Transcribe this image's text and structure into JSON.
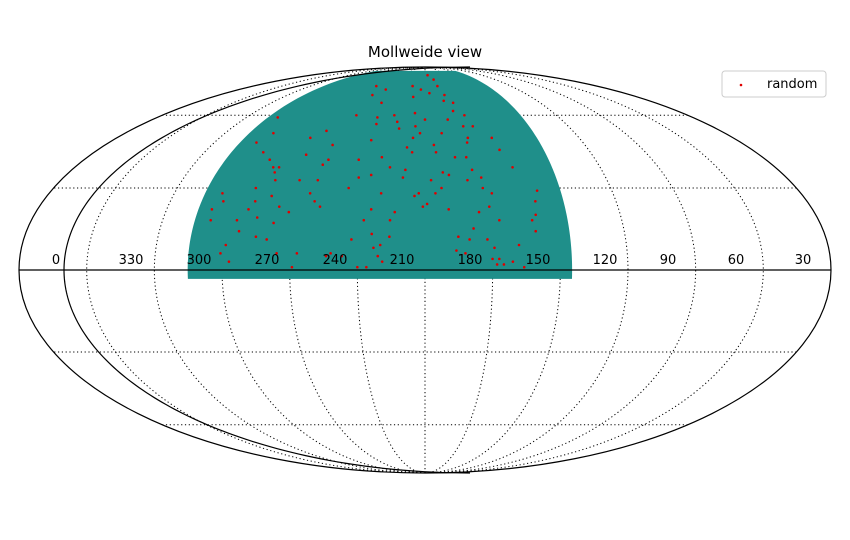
{
  "chart_data": {
    "type": "scatter",
    "title": "Mollweide view",
    "projection": "mollweide",
    "grid": true,
    "legend_position": "top-right",
    "x_ticks": [
      "0",
      "330",
      "300",
      "270",
      "240",
      "210",
      "180",
      "150",
      "120",
      "90",
      "60",
      "30"
    ],
    "footprint": {
      "color": "#1f8f8a",
      "ra_range": [
        115,
        285
      ],
      "dec_range": [
        -3,
        85
      ]
    },
    "series": [
      {
        "name": "random",
        "color": "#e00000",
        "points": [
          [
            279,
            59
          ],
          [
            271,
            52
          ],
          [
            276,
            48
          ],
          [
            268,
            44
          ],
          [
            262,
            41
          ],
          [
            258,
            38
          ],
          [
            254,
            33
          ],
          [
            279,
            22
          ],
          [
            278,
            18
          ],
          [
            275,
            25
          ],
          [
            277,
            28
          ],
          [
            262,
            30
          ],
          [
            256,
            36
          ],
          [
            255,
            38
          ],
          [
            244,
            43
          ],
          [
            253,
            27
          ],
          [
            257,
            19
          ],
          [
            256,
            12
          ],
          [
            248,
            23
          ],
          [
            249,
            17
          ],
          [
            251,
            11
          ],
          [
            243,
            21
          ],
          [
            246,
            6
          ],
          [
            237,
            6
          ],
          [
            239,
            1
          ],
          [
            232,
            25
          ],
          [
            229,
            23
          ],
          [
            233,
            39
          ],
          [
            232,
            47
          ],
          [
            227,
            60
          ],
          [
            226,
            70
          ],
          [
            231,
            75
          ],
          [
            218,
            73
          ],
          [
            214,
            66
          ],
          [
            212,
            59
          ],
          [
            211,
            56
          ],
          [
            211,
            49
          ],
          [
            215,
            41
          ],
          [
            213,
            34
          ],
          [
            217,
            30
          ],
          [
            213,
            11
          ],
          [
            210,
            1
          ],
          [
            206,
            1
          ],
          [
            203,
            8
          ],
          [
            200,
            9
          ],
          [
            196,
            12
          ],
          [
            196,
            18
          ],
          [
            194,
            21
          ],
          [
            191,
            34
          ],
          [
            190,
            37
          ],
          [
            204,
            13
          ],
          [
            208,
            18
          ],
          [
            205,
            22
          ],
          [
            201,
            28
          ],
          [
            198,
            38
          ],
          [
            203,
            42
          ],
          [
            190,
            46
          ],
          [
            187,
            44
          ],
          [
            187,
            50
          ],
          [
            186,
            55
          ],
          [
            187,
            61
          ],
          [
            190,
            69
          ],
          [
            193,
            75
          ],
          [
            184,
            73
          ],
          [
            176,
            71
          ],
          [
            176,
            82
          ],
          [
            169,
            79
          ],
          [
            167,
            75
          ],
          [
            163,
            70
          ],
          [
            165,
            67
          ],
          [
            160,
            62
          ],
          [
            156,
            55
          ],
          [
            155,
            50
          ],
          [
            158,
            42
          ],
          [
            156,
            37
          ],
          [
            159,
            33
          ],
          [
            152,
            34
          ],
          [
            152,
            30
          ],
          [
            148,
            28
          ],
          [
            150,
            23
          ],
          [
            155,
            21
          ],
          [
            158,
            15
          ],
          [
            160,
            11
          ],
          [
            146,
            18
          ],
          [
            152,
            11
          ],
          [
            149,
            8
          ],
          [
            147,
            4
          ],
          [
            150,
            4
          ],
          [
            145,
            2
          ],
          [
            141,
            3
          ],
          [
            136,
            1
          ],
          [
            148,
            2
          ],
          [
            138,
            9
          ],
          [
            130,
            14
          ],
          [
            129,
            20
          ],
          [
            131,
            18
          ],
          [
            128,
            25
          ],
          [
            126,
            29
          ],
          [
            135,
            38
          ],
          [
            139,
            45
          ],
          [
            141,
            50
          ],
          [
            150,
            55
          ],
          [
            153,
            60
          ],
          [
            158,
            66
          ],
          [
            174,
            44
          ],
          [
            177,
            33
          ],
          [
            183,
            28
          ],
          [
            185,
            27
          ],
          [
            181,
            23
          ],
          [
            169,
            22
          ],
          [
            175,
            28
          ],
          [
            179,
            24
          ],
          [
            165,
            12
          ],
          [
            166,
            7
          ],
          [
            162,
            6
          ],
          [
            168,
            35
          ],
          [
            171,
            36
          ],
          [
            172,
            30
          ],
          [
            175,
            47
          ],
          [
            165,
            58
          ],
          [
            183,
            52
          ],
          [
            199,
            3
          ],
          [
            201,
            5
          ],
          [
            217,
            5
          ],
          [
            222,
            6
          ],
          [
            224,
            5
          ],
          [
            231,
            41
          ],
          [
            233,
            33
          ],
          [
            235,
            28
          ],
          [
            207,
            35
          ],
          [
            201,
            60
          ],
          [
            198,
            57
          ],
          [
            196,
            54
          ],
          [
            240,
            53
          ],
          [
            247,
            50
          ],
          [
            242,
            33
          ],
          [
            260,
            25
          ],
          [
            262,
            22
          ],
          [
            266,
            18
          ],
          [
            264,
            14
          ],
          [
            269,
            9
          ],
          [
            271,
            6
          ],
          [
            267,
            3
          ],
          [
            156,
            48
          ],
          [
            164,
            42
          ],
          [
            170,
            52
          ],
          [
            180,
            58
          ]
        ]
      }
    ]
  }
}
